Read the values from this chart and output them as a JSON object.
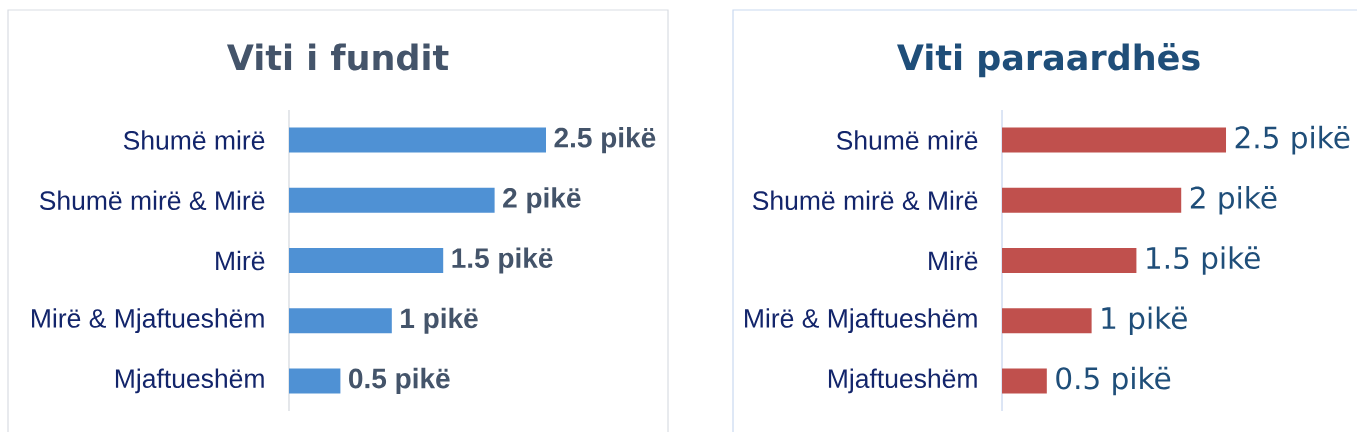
{
  "chart_data": [
    {
      "type": "bar",
      "orientation": "horizontal",
      "title": "Viti i fundit",
      "categories": [
        "Shumë mirë",
        "Shumë mirë & Mirë",
        "Mirë",
        "Mirë & Mjaftueshëm",
        "Mjaftueshëm"
      ],
      "values": [
        2.5,
        2,
        1.5,
        1,
        0.5
      ],
      "color": "#4f91d4",
      "value_labels": [
        "2.5 pikë",
        "2 pikë",
        "1.5 pikë",
        "1 pikë",
        "0.5 pikë"
      ]
    },
    {
      "type": "bar",
      "orientation": "horizontal",
      "title": "Viti paraardhës",
      "categories": [
        "Shumë mirë",
        "Shumë mirë & Mirë",
        "Mirë",
        "Mirë & Mjaftueshëm",
        "Mjaftueshëm"
      ],
      "values": [
        2.5,
        2,
        1.5,
        1,
        0.5
      ],
      "color": "#c0504d",
      "value_labels": [
        "2.5 pikë",
        "2 pikë",
        "1.5 pikë",
        "1 pikë",
        "0.5 pikë"
      ]
    }
  ]
}
